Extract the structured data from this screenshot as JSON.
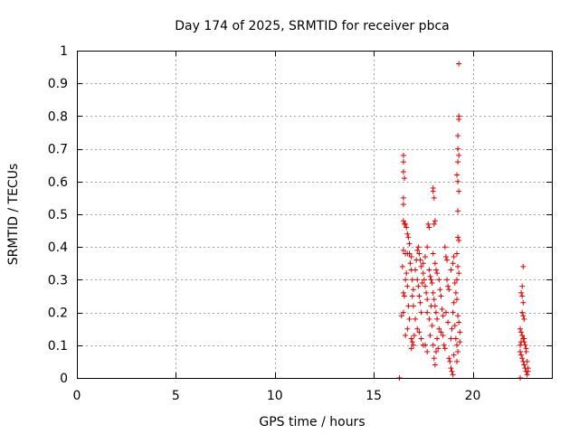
{
  "chart_data": {
    "type": "scatter",
    "title": "Day 174 of 2025, SRMTID for receiver pbca",
    "xlabel": "GPS time / hours",
    "ylabel": "SRMTID / TECUs",
    "xlim": [
      0,
      24
    ],
    "ylim": [
      0,
      1
    ],
    "xticks": [
      0,
      5,
      10,
      15,
      20
    ],
    "yticks": [
      0,
      0.1,
      0.2,
      0.3,
      0.4,
      0.5,
      0.6,
      0.7,
      0.8,
      0.9,
      1
    ],
    "ytick_labels": [
      "0",
      "0.1",
      "0.2",
      "0.3",
      "0.4",
      "0.5",
      "0.6",
      "0.7",
      "0.8",
      "0.9",
      "1"
    ],
    "grid": true,
    "marker": "+",
    "series_color": "#e00000",
    "series": [
      {
        "name": "SRMTID",
        "points": [
          [
            16.3,
            0.0
          ],
          [
            22.4,
            0.0
          ],
          [
            16.5,
            0.68
          ],
          [
            16.5,
            0.66
          ],
          [
            16.5,
            0.63
          ],
          [
            16.55,
            0.61
          ],
          [
            16.5,
            0.55
          ],
          [
            16.5,
            0.53
          ],
          [
            16.5,
            0.48
          ],
          [
            16.55,
            0.47
          ],
          [
            16.6,
            0.47
          ],
          [
            16.65,
            0.46
          ],
          [
            16.7,
            0.44
          ],
          [
            16.75,
            0.43
          ],
          [
            16.8,
            0.41
          ],
          [
            16.5,
            0.39
          ],
          [
            16.6,
            0.38
          ],
          [
            16.7,
            0.38
          ],
          [
            16.8,
            0.38
          ],
          [
            16.9,
            0.37
          ],
          [
            16.45,
            0.34
          ],
          [
            16.5,
            0.26
          ],
          [
            16.55,
            0.25
          ],
          [
            16.4,
            0.19
          ],
          [
            16.5,
            0.2
          ],
          [
            16.6,
            0.3
          ],
          [
            16.65,
            0.32
          ],
          [
            16.7,
            0.28
          ],
          [
            16.75,
            0.22
          ],
          [
            16.8,
            0.18
          ],
          [
            16.6,
            0.13
          ],
          [
            16.7,
            0.15
          ],
          [
            16.85,
            0.35
          ],
          [
            16.9,
            0.33
          ],
          [
            16.95,
            0.3
          ],
          [
            17.0,
            0.27
          ],
          [
            16.95,
            0.25
          ],
          [
            17.0,
            0.22
          ],
          [
            16.9,
            0.12
          ],
          [
            16.95,
            0.11
          ],
          [
            17.0,
            0.1
          ],
          [
            16.9,
            0.09
          ],
          [
            17.05,
            0.13
          ],
          [
            17.1,
            0.18
          ],
          [
            17.1,
            0.33
          ],
          [
            17.15,
            0.36
          ],
          [
            17.2,
            0.39
          ],
          [
            17.25,
            0.4
          ],
          [
            17.3,
            0.38
          ],
          [
            17.35,
            0.36
          ],
          [
            17.4,
            0.34
          ],
          [
            17.2,
            0.3
          ],
          [
            17.25,
            0.28
          ],
          [
            17.3,
            0.25
          ],
          [
            17.35,
            0.23
          ],
          [
            17.4,
            0.2
          ],
          [
            17.2,
            0.15
          ],
          [
            17.3,
            0.14
          ],
          [
            17.4,
            0.12
          ],
          [
            17.5,
            0.1
          ],
          [
            17.45,
            0.29
          ],
          [
            17.5,
            0.32
          ],
          [
            17.55,
            0.3
          ],
          [
            17.6,
            0.28
          ],
          [
            17.65,
            0.26
          ],
          [
            17.7,
            0.24
          ],
          [
            17.5,
            0.35
          ],
          [
            17.6,
            0.37
          ],
          [
            17.7,
            0.4
          ],
          [
            17.75,
            0.47
          ],
          [
            17.8,
            0.46
          ],
          [
            17.8,
            0.33
          ],
          [
            17.85,
            0.31
          ],
          [
            17.9,
            0.3
          ],
          [
            17.95,
            0.29
          ],
          [
            17.7,
            0.2
          ],
          [
            17.8,
            0.18
          ],
          [
            17.9,
            0.22
          ],
          [
            17.6,
            0.1
          ],
          [
            17.7,
            0.08
          ],
          [
            17.85,
            0.13
          ],
          [
            17.95,
            0.16
          ],
          [
            18.0,
            0.58
          ],
          [
            18.0,
            0.57
          ],
          [
            18.05,
            0.55
          ],
          [
            18.05,
            0.47
          ],
          [
            18.1,
            0.48
          ],
          [
            18.0,
            0.38
          ],
          [
            18.1,
            0.35
          ],
          [
            18.15,
            0.33
          ],
          [
            18.2,
            0.32
          ],
          [
            18.0,
            0.26
          ],
          [
            18.05,
            0.24
          ],
          [
            18.1,
            0.22
          ],
          [
            18.15,
            0.2
          ],
          [
            18.2,
            0.18
          ],
          [
            18.0,
            0.1
          ],
          [
            18.05,
            0.06
          ],
          [
            18.1,
            0.04
          ],
          [
            18.15,
            0.08
          ],
          [
            18.2,
            0.12
          ],
          [
            18.25,
            0.09
          ],
          [
            18.3,
            0.3
          ],
          [
            18.35,
            0.27
          ],
          [
            18.4,
            0.25
          ],
          [
            18.45,
            0.21
          ],
          [
            18.5,
            0.19
          ],
          [
            18.3,
            0.15
          ],
          [
            18.4,
            0.14
          ],
          [
            18.5,
            0.13
          ],
          [
            18.55,
            0.1
          ],
          [
            18.6,
            0.09
          ],
          [
            18.6,
            0.4
          ],
          [
            18.65,
            0.37
          ],
          [
            18.7,
            0.36
          ],
          [
            18.7,
            0.3
          ],
          [
            18.75,
            0.28
          ],
          [
            18.8,
            0.27
          ],
          [
            18.65,
            0.2
          ],
          [
            18.75,
            0.17
          ],
          [
            18.8,
            0.06
          ],
          [
            18.85,
            0.05
          ],
          [
            18.9,
            0.03
          ],
          [
            18.95,
            0.02
          ],
          [
            19.0,
            0.01
          ],
          [
            19.05,
            0.07
          ],
          [
            18.9,
            0.12
          ],
          [
            18.95,
            0.15
          ],
          [
            19.0,
            0.2
          ],
          [
            19.05,
            0.23
          ],
          [
            18.9,
            0.33
          ],
          [
            19.0,
            0.35
          ],
          [
            19.05,
            0.37
          ],
          [
            19.1,
            0.29
          ],
          [
            19.15,
            0.26
          ],
          [
            19.2,
            0.24
          ],
          [
            19.1,
            0.16
          ],
          [
            19.15,
            0.12
          ],
          [
            19.2,
            0.1
          ],
          [
            19.25,
            0.08
          ],
          [
            19.2,
            0.05
          ],
          [
            19.3,
            0.96
          ],
          [
            19.3,
            0.8
          ],
          [
            19.3,
            0.79
          ],
          [
            19.25,
            0.74
          ],
          [
            19.25,
            0.7
          ],
          [
            19.3,
            0.68
          ],
          [
            19.25,
            0.66
          ],
          [
            19.2,
            0.62
          ],
          [
            19.25,
            0.6
          ],
          [
            19.3,
            0.57
          ],
          [
            19.25,
            0.51
          ],
          [
            19.25,
            0.43
          ],
          [
            19.3,
            0.42
          ],
          [
            19.2,
            0.38
          ],
          [
            19.25,
            0.34
          ],
          [
            19.3,
            0.32
          ],
          [
            19.2,
            0.3
          ],
          [
            19.25,
            0.19
          ],
          [
            19.3,
            0.17
          ],
          [
            19.35,
            0.14
          ],
          [
            19.35,
            0.11
          ],
          [
            22.55,
            0.34
          ],
          [
            22.5,
            0.28
          ],
          [
            22.45,
            0.26
          ],
          [
            22.5,
            0.25
          ],
          [
            22.55,
            0.23
          ],
          [
            22.5,
            0.2
          ],
          [
            22.55,
            0.19
          ],
          [
            22.6,
            0.18
          ],
          [
            22.4,
            0.15
          ],
          [
            22.45,
            0.14
          ],
          [
            22.5,
            0.13
          ],
          [
            22.55,
            0.12
          ],
          [
            22.6,
            0.11
          ],
          [
            22.65,
            0.1
          ],
          [
            22.7,
            0.09
          ],
          [
            22.4,
            0.08
          ],
          [
            22.45,
            0.07
          ],
          [
            22.5,
            0.06
          ],
          [
            22.55,
            0.05
          ],
          [
            22.6,
            0.04
          ],
          [
            22.65,
            0.03
          ],
          [
            22.7,
            0.02
          ],
          [
            22.75,
            0.01
          ],
          [
            22.8,
            0.02
          ],
          [
            22.4,
            0.1
          ],
          [
            22.45,
            0.11
          ],
          [
            22.6,
            0.12
          ],
          [
            22.7,
            0.08
          ],
          [
            22.75,
            0.05
          ],
          [
            22.8,
            0.03
          ]
        ]
      }
    ]
  }
}
